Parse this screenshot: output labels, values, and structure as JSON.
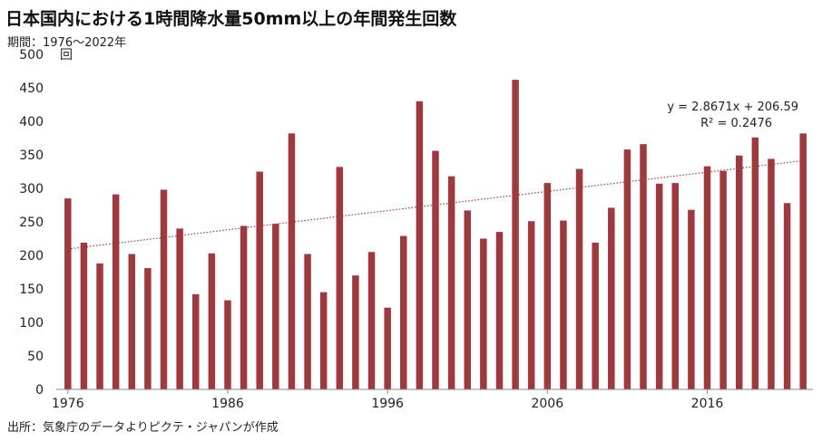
{
  "title": "日本国内における1時間降水量50mm以上の年間発生回数",
  "subtitle": "期間：1976〜2022年",
  "source": "出所：気象庁のデータよりピクテ・ジャパンが作成",
  "chart_data": {
    "type": "bar",
    "ylabel": "回",
    "ylim": [
      0,
      500
    ],
    "yticks": [
      0,
      50,
      100,
      150,
      200,
      250,
      300,
      350,
      400,
      450,
      500
    ],
    "xticks": [
      "1976",
      "1986",
      "1996",
      "2006",
      "2016"
    ],
    "x": [
      1976,
      1977,
      1978,
      1979,
      1980,
      1981,
      1982,
      1983,
      1984,
      1985,
      1986,
      1987,
      1988,
      1989,
      1990,
      1991,
      1992,
      1993,
      1994,
      1995,
      1996,
      1997,
      1998,
      1999,
      2000,
      2001,
      2002,
      2003,
      2004,
      2005,
      2006,
      2007,
      2008,
      2009,
      2010,
      2011,
      2012,
      2013,
      2014,
      2015,
      2016,
      2017,
      2018,
      2019,
      2020,
      2021,
      2022
    ],
    "series": [
      {
        "values": [
          285,
          219,
          188,
          291,
          202,
          181,
          298,
          240,
          142,
          203,
          133,
          244,
          325,
          247,
          382,
          202,
          145,
          332,
          170,
          205,
          122,
          229,
          430,
          356,
          318,
          267,
          225,
          235,
          462,
          251,
          308,
          252,
          329,
          219,
          271,
          358,
          366,
          307,
          308,
          268,
          333,
          326,
          349,
          376,
          344,
          278,
          382
        ],
        "color": "#9e3a3f"
      }
    ],
    "trendline": {
      "slope": 2.8671,
      "intercept": 206.59,
      "equation": "y = 2.8671x + 206.59",
      "r_squared": "R² = 0.2476",
      "style": "dotted",
      "color": "#9e3a3f"
    },
    "grid": false
  }
}
